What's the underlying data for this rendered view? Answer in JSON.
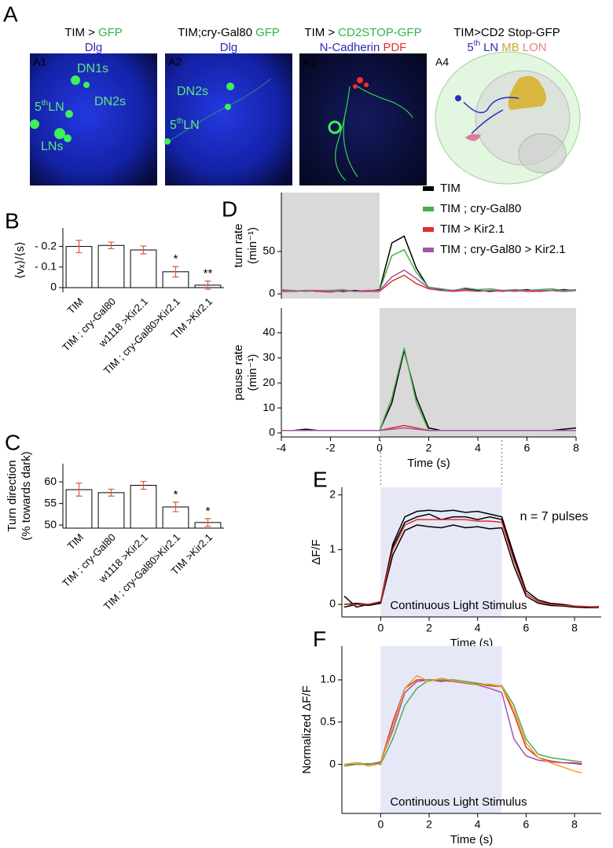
{
  "images": {
    "panel": "A",
    "panels": [
      {
        "label": "A1",
        "label_color": "#ffffff",
        "annotation_color": "#5ee87a",
        "heading": [
          [
            {
              "text": "TIM >",
              "color": "#000000"
            },
            {
              "text": "GFP",
              "color": "#2fb44a"
            }
          ],
          [
            {
              "text": "Dlg",
              "color": "#2b2bb8"
            }
          ]
        ],
        "annotations": [
          {
            "text": "DN1s"
          },
          {
            "text": "DN2s"
          },
          {
            "text": "LNs"
          },
          {
            "text": "5",
            "sup": "th",
            "rest": "LN"
          }
        ]
      },
      {
        "label": "A2",
        "label_color": "#ffffff",
        "annotation_color": "#5ee87a",
        "heading": [
          [
            {
              "text": "TIM;cry-Gal80",
              "color": "#000000"
            },
            {
              "text": "GFP",
              "color": "#2fb44a"
            }
          ],
          [
            {
              "text": "Dlg",
              "color": "#2b2bb8"
            }
          ]
        ],
        "annotations": [
          {
            "text": "DN2s"
          },
          {
            "text": "5",
            "sup": "th",
            "rest": "LN"
          }
        ]
      },
      {
        "label": "A3",
        "label_color": "#ffffff",
        "annotation_color": "#5ee87a",
        "heading": [
          [
            {
              "text": "TIM >",
              "color": "#000000"
            },
            {
              "text": "CD2STOP-GFP",
              "color": "#2fb44a"
            }
          ],
          [
            {
              "text": "N-Cadherin",
              "color": "#2b2bb8"
            },
            {
              "text": "PDF",
              "color": "#e0302a"
            }
          ]
        ]
      },
      {
        "label": "A4",
        "label_color": "#000000",
        "annotation_color": "#000000",
        "heading": [
          [
            {
              "text": "TIM>CD2 Stop-GFP",
              "color": "#000000"
            }
          ],
          [
            {
              "text": "5",
              "color": "#2b2bb8"
            },
            {
              "text": "th",
              "color": "#2b2bb8",
              "sup": true
            },
            {
              "text": "LN",
              "color": "#2b2bb8"
            },
            {
              "text": "MB",
              "color": "#c9a63a"
            },
            {
              "text": "LON",
              "color": "#f08080"
            }
          ]
        ]
      }
    ]
  },
  "chart_data": [
    {
      "type": "bar",
      "panel": "B",
      "ylabel": "⟨vₓ⟩/⟨s⟩",
      "categories": [
        "TIM",
        "TIM ; cry-Gal80",
        "w1118 >Kir2.1",
        "TIM ; cry-Gal80>Kir2.1",
        "TIM >Kir2.1"
      ],
      "values": [
        0.2,
        0.205,
        0.183,
        0.077,
        0.012
      ],
      "errors": [
        0.03,
        0.016,
        0.019,
        0.025,
        0.02
      ],
      "significance": [
        null,
        null,
        null,
        "*",
        "**"
      ],
      "color": "#ffffff",
      "edgecolor": "#000000",
      "errorcolor": "#e05a3a",
      "ylim": [
        -0.023,
        0.29
      ],
      "yticks": [
        {
          "value": 0.2,
          "label": "- 0.2"
        },
        {
          "value": 0.1,
          "label": "- 0.1"
        },
        0
      ]
    },
    {
      "type": "bar",
      "panel": "C",
      "ylabel": [
        "Turn direction",
        "(% towards dark)"
      ],
      "categories": [
        "TIM",
        "TIM ; cry-Gal80",
        "w1118 >Kir2.1",
        "TIM ; cry-Gal80>Kir2.1",
        "TIM >Kir2.1"
      ],
      "values": [
        58.2,
        57.5,
        59.2,
        54.2,
        50.6
      ],
      "errors": [
        1.5,
        0.8,
        0.9,
        1.1,
        0.9
      ],
      "significance": [
        null,
        null,
        null,
        "*",
        "*"
      ],
      "color": "#ffffff",
      "edgecolor": "#000000",
      "errorcolor": "#e05a3a",
      "ylim": [
        49.3,
        64.2
      ],
      "yticks": [
        50,
        55,
        60
      ]
    },
    {
      "type": "line",
      "panel": "D",
      "ylabel": [
        "turn rate",
        "(min⁻¹)"
      ],
      "x": [
        -4,
        -3.5,
        -3,
        -2.5,
        -2,
        -1.5,
        -1,
        -0.5,
        0,
        0.5,
        1,
        1.5,
        2,
        2.5,
        3,
        3.5,
        4,
        4.5,
        5,
        5.5,
        6,
        6.5,
        7,
        7.5,
        8
      ],
      "series": [
        {
          "name": "TIM",
          "color": "#000000",
          "values": [
            4,
            3,
            4,
            3,
            4,
            3,
            4,
            3,
            5,
            60,
            68,
            30,
            7,
            5,
            4,
            6,
            4,
            3,
            4,
            4,
            5,
            3,
            4,
            5,
            4
          ]
        },
        {
          "name": "TIM ; cry-Gal80",
          "color": "#4cae4c",
          "values": [
            5,
            4,
            3,
            4,
            4,
            5,
            3,
            4,
            4,
            45,
            52,
            25,
            8,
            6,
            4,
            7,
            5,
            6,
            4,
            5,
            4,
            5,
            6,
            4,
            5
          ]
        },
        {
          "name": "TIM > Kir2.1",
          "color": "#e0302a",
          "values": [
            3,
            3,
            4,
            3,
            2,
            4,
            3,
            3,
            3,
            15,
            22,
            12,
            6,
            4,
            3,
            4,
            3,
            4,
            3,
            4,
            3,
            3,
            4,
            3,
            4
          ]
        },
        {
          "name": "TIM ; cry-Gal80 > Kir2.1",
          "color": "#a455a8",
          "values": [
            4,
            3,
            4,
            4,
            3,
            4,
            3,
            4,
            4,
            20,
            28,
            18,
            7,
            4,
            4,
            5,
            3,
            4,
            4,
            3,
            4,
            4,
            4,
            3,
            4
          ]
        }
      ],
      "xlim": [
        -4,
        8
      ],
      "ylim": [
        -5.6,
        119.4
      ],
      "yticks": [
        0,
        50
      ],
      "shade": [
        -4,
        0
      ],
      "shade_color": "#d9d9d9",
      "legend": "upper right"
    },
    {
      "type": "line",
      "ylabel": [
        "pause rate",
        "(min⁻¹)"
      ],
      "xlabel": "Time (s)",
      "x": [
        -4,
        -3.5,
        -3,
        -2.5,
        -2,
        -1.5,
        -1,
        -0.5,
        0,
        0.5,
        1,
        1.5,
        2,
        2.5,
        3,
        3.5,
        4,
        4.5,
        5,
        5.5,
        6,
        6.5,
        7,
        7.5,
        8
      ],
      "series": [
        {
          "color": "#000000",
          "values": [
            1,
            1,
            1.5,
            1,
            1,
            1,
            1,
            1,
            1,
            12,
            33,
            14,
            2,
            1,
            1,
            1,
            1,
            1,
            1,
            1,
            1,
            1,
            1,
            1.5,
            2
          ]
        },
        {
          "color": "#4cae4c",
          "values": [
            1,
            1,
            1,
            1,
            1,
            1,
            1,
            1,
            1,
            14,
            34,
            12,
            1,
            1,
            1,
            1,
            1,
            1,
            1,
            1,
            1,
            1,
            1,
            1,
            1
          ]
        },
        {
          "color": "#e0302a",
          "values": [
            1,
            1,
            1,
            1,
            1,
            1,
            1,
            1,
            1,
            2,
            3,
            2,
            1,
            1,
            1,
            1,
            1,
            1,
            1,
            1,
            1,
            1,
            1,
            1,
            1
          ]
        },
        {
          "color": "#a455a8",
          "values": [
            1,
            1,
            1,
            1,
            1,
            1,
            1,
            1,
            1,
            1.5,
            2,
            1.5,
            1,
            1,
            1,
            1,
            1,
            1,
            1,
            1,
            1,
            1,
            1,
            1,
            1
          ]
        }
      ],
      "xlim": [
        -4,
        8
      ],
      "ylim": [
        -1.6,
        49.9
      ],
      "yticks": [
        0,
        10,
        20,
        30,
        40
      ],
      "xticks": [
        -4,
        -2,
        0,
        2,
        4,
        6,
        8
      ],
      "shade": [
        0,
        8
      ],
      "shade_color": "#d9d9d9"
    },
    {
      "type": "line",
      "panel": "E",
      "ylabel": "ΔF/F",
      "xlabel": "Time (s)",
      "note": "n = 7 pulses",
      "stimulus_label": "Continuous Light Stimulus",
      "connector_lines": true,
      "x": [
        -1.5,
        -1,
        -0.5,
        0,
        0.5,
        1,
        1.5,
        2,
        2.5,
        3,
        3.5,
        4,
        4.5,
        5,
        5.5,
        6,
        6.5,
        7,
        7.5,
        8,
        8.5,
        9
      ],
      "series": [
        {
          "color": "#000000",
          "values": [
            0.15,
            -0.05,
            0,
            0.05,
            1.1,
            1.6,
            1.7,
            1.72,
            1.7,
            1.72,
            1.68,
            1.7,
            1.65,
            1.6,
            0.9,
            0.25,
            0.08,
            0.02,
            0,
            -0.03,
            -0.05,
            -0.05
          ]
        },
        {
          "color": "#000000",
          "values": [
            -0.05,
            0,
            -0.02,
            0.02,
            0.9,
            1.35,
            1.45,
            1.42,
            1.4,
            1.45,
            1.4,
            1.42,
            1.38,
            1.4,
            0.7,
            0.15,
            0.02,
            -0.02,
            -0.03,
            -0.05,
            -0.06,
            -0.06
          ]
        },
        {
          "color": "#000000",
          "values": [
            0,
            0.02,
            0,
            0.04,
            1.05,
            1.5,
            1.6,
            1.65,
            1.55,
            1.6,
            1.6,
            1.55,
            1.6,
            1.55,
            0.85,
            0.2,
            0.05,
            0,
            -0.02,
            -0.04,
            -0.05,
            -0.04
          ]
        },
        {
          "color": "#e0302a",
          "values": [
            0,
            0,
            0,
            0.05,
            1.0,
            1.45,
            1.55,
            1.55,
            1.55,
            1.55,
            1.55,
            1.52,
            1.52,
            1.5,
            0.8,
            0.2,
            0.05,
            0,
            -0.02,
            -0.03,
            -0.04,
            -0.05
          ]
        }
      ],
      "xlim": [
        -1.6,
        9.1
      ],
      "ylim": [
        -0.23,
        2.14
      ],
      "yticks": [
        0,
        1,
        2
      ],
      "xticks": [
        0,
        2,
        4,
        6,
        8
      ],
      "shade": [
        0,
        5
      ],
      "shade_color": "#e6e8f7"
    },
    {
      "type": "line",
      "panel": "F",
      "ylabel": "Normalized ΔF/F",
      "xlabel": "Time (s)",
      "stimulus_label": "Continuous Light Stimulus",
      "x": [
        -1.5,
        -1,
        -0.5,
        0,
        0.5,
        1,
        1.5,
        2,
        2.5,
        3,
        3.5,
        4,
        4.5,
        5,
        5.5,
        6,
        6.5,
        7,
        7.5,
        8,
        8.3
      ],
      "series": [
        {
          "color": "#e0302a",
          "values": [
            0,
            0,
            0,
            0.02,
            0.5,
            0.9,
            1.0,
            1.0,
            0.98,
            1.0,
            0.97,
            0.95,
            0.93,
            0.92,
            0.6,
            0.2,
            0.08,
            0.04,
            0.02,
            0.01,
            0
          ]
        },
        {
          "color": "#a455a8",
          "values": [
            0,
            0.02,
            0,
            0.03,
            0.4,
            0.85,
            0.98,
            1.0,
            0.99,
            0.98,
            0.96,
            0.94,
            0.9,
            0.85,
            0.3,
            0.1,
            0.05,
            0.03,
            0.02,
            0.02,
            0.01
          ]
        },
        {
          "color": "#4cae4c",
          "values": [
            -0.02,
            0,
            0.01,
            0,
            0.3,
            0.7,
            0.9,
            1.0,
            1.0,
            1.0,
            0.98,
            0.96,
            0.94,
            0.93,
            0.7,
            0.3,
            0.12,
            0.08,
            0.06,
            0.04,
            0.03
          ]
        },
        {
          "color": "#f0a020",
          "values": [
            0,
            0.02,
            -0.02,
            0.01,
            0.45,
            0.9,
            1.05,
            0.98,
            1.02,
            0.99,
            0.97,
            0.94,
            0.95,
            0.92,
            0.65,
            0.25,
            0.08,
            0.02,
            -0.03,
            -0.08,
            -0.1
          ]
        }
      ],
      "xlim": [
        -1.6,
        9.1
      ],
      "ylim": [
        -0.58,
        1.4
      ],
      "yticks": [
        0,
        0.5,
        {
          "value": 1,
          "label": "1.0"
        }
      ],
      "xticks": [
        0,
        2,
        4,
        6,
        8
      ],
      "shade": [
        0,
        5
      ],
      "shade_color": "#e6e8f7"
    }
  ]
}
